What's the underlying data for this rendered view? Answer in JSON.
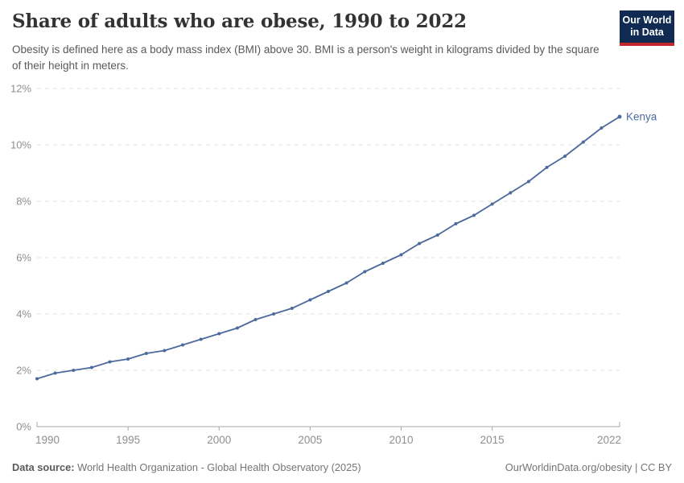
{
  "header": {
    "title": "Share of adults who are obese, 1990 to 2022",
    "subtitle": "Obesity is defined here as a body mass index (BMI) above 30. BMI is a person's weight in kilograms divided by the square of their height in meters.",
    "logo": {
      "line1": "Our World",
      "line2": "in Data",
      "bg_color": "#102a52",
      "accent_color": "#c0282d"
    }
  },
  "chart_data": {
    "type": "line",
    "title": "Share of adults who are obese, 1990 to 2022",
    "xlabel": "",
    "ylabel": "",
    "xlim": [
      1990,
      2022
    ],
    "ylim": [
      0,
      12
    ],
    "grid": "horizontal-dashed",
    "legend_position": "end-of-line-label",
    "x_ticks": [
      1990,
      1995,
      2000,
      2005,
      2010,
      2015,
      2022
    ],
    "y_ticks": [
      0,
      2,
      4,
      6,
      8,
      10,
      12
    ],
    "y_tick_suffix": "%",
    "series": [
      {
        "name": "Kenya",
        "color": "#4c6a9c",
        "x": [
          1990,
          1991,
          1992,
          1993,
          1994,
          1995,
          1996,
          1997,
          1998,
          1999,
          2000,
          2001,
          2002,
          2003,
          2004,
          2005,
          2006,
          2007,
          2008,
          2009,
          2010,
          2011,
          2012,
          2013,
          2014,
          2015,
          2016,
          2017,
          2018,
          2019,
          2020,
          2021,
          2022
        ],
        "values": [
          1.7,
          1.9,
          2.0,
          2.1,
          2.3,
          2.4,
          2.6,
          2.7,
          2.9,
          3.1,
          3.3,
          3.5,
          3.8,
          4.0,
          4.2,
          4.5,
          4.8,
          5.1,
          5.5,
          5.8,
          6.1,
          6.5,
          6.8,
          7.2,
          7.5,
          7.9,
          8.3,
          8.7,
          9.2,
          9.6,
          10.1,
          10.6,
          11.0
        ]
      }
    ],
    "colors": {
      "gridline": "#e2e2e2",
      "axis": "#a8a8a8",
      "tick_label": "#8f8f8f"
    }
  },
  "footer": {
    "datasource_label": "Data source:",
    "datasource_text": "World Health Organization - Global Health Observatory (2025)",
    "attribution": "OurWorldinData.org/obesity | CC BY"
  }
}
